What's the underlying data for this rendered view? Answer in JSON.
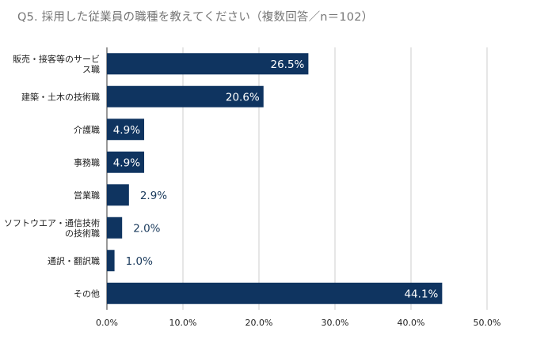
{
  "chart_data": {
    "type": "bar",
    "orientation": "horizontal",
    "title": "Q5.  採用した従業員の職種を教えてください（複数回答／n＝102）",
    "categories": [
      [
        "販売・接客等のサービ",
        "ス職"
      ],
      [
        "建築・土木の技術職"
      ],
      [
        "介護職"
      ],
      [
        "事務職"
      ],
      [
        "営業職"
      ],
      [
        "ソフトウエア・通信技術",
        "の技術職"
      ],
      [
        "通訳・翻訳職"
      ],
      [
        "その他"
      ]
    ],
    "values": [
      26.5,
      20.6,
      4.9,
      4.9,
      2.9,
      2.0,
      1.0,
      44.1
    ],
    "data_labels": [
      "26.5%",
      "20.6%",
      "4.9%",
      "4.9%",
      "2.9%",
      "2.0%",
      "1.0%",
      "44.1%"
    ],
    "xlim": [
      0,
      50
    ],
    "x_ticks": [
      0,
      10,
      20,
      30,
      40,
      50
    ],
    "x_tick_labels": [
      "0.0%",
      "10.0%",
      "20.0%",
      "30.0%",
      "40.0%",
      "50.0%"
    ],
    "xlabel": "",
    "ylabel": "",
    "grid": "vertical",
    "legend": "none",
    "colors": {
      "bar": "#0f3460",
      "grid": "#cccccc",
      "label_inside": "#ffffff",
      "label_outside": "#1a3a5c",
      "axis_text": "#222222",
      "title": "#757575"
    }
  }
}
